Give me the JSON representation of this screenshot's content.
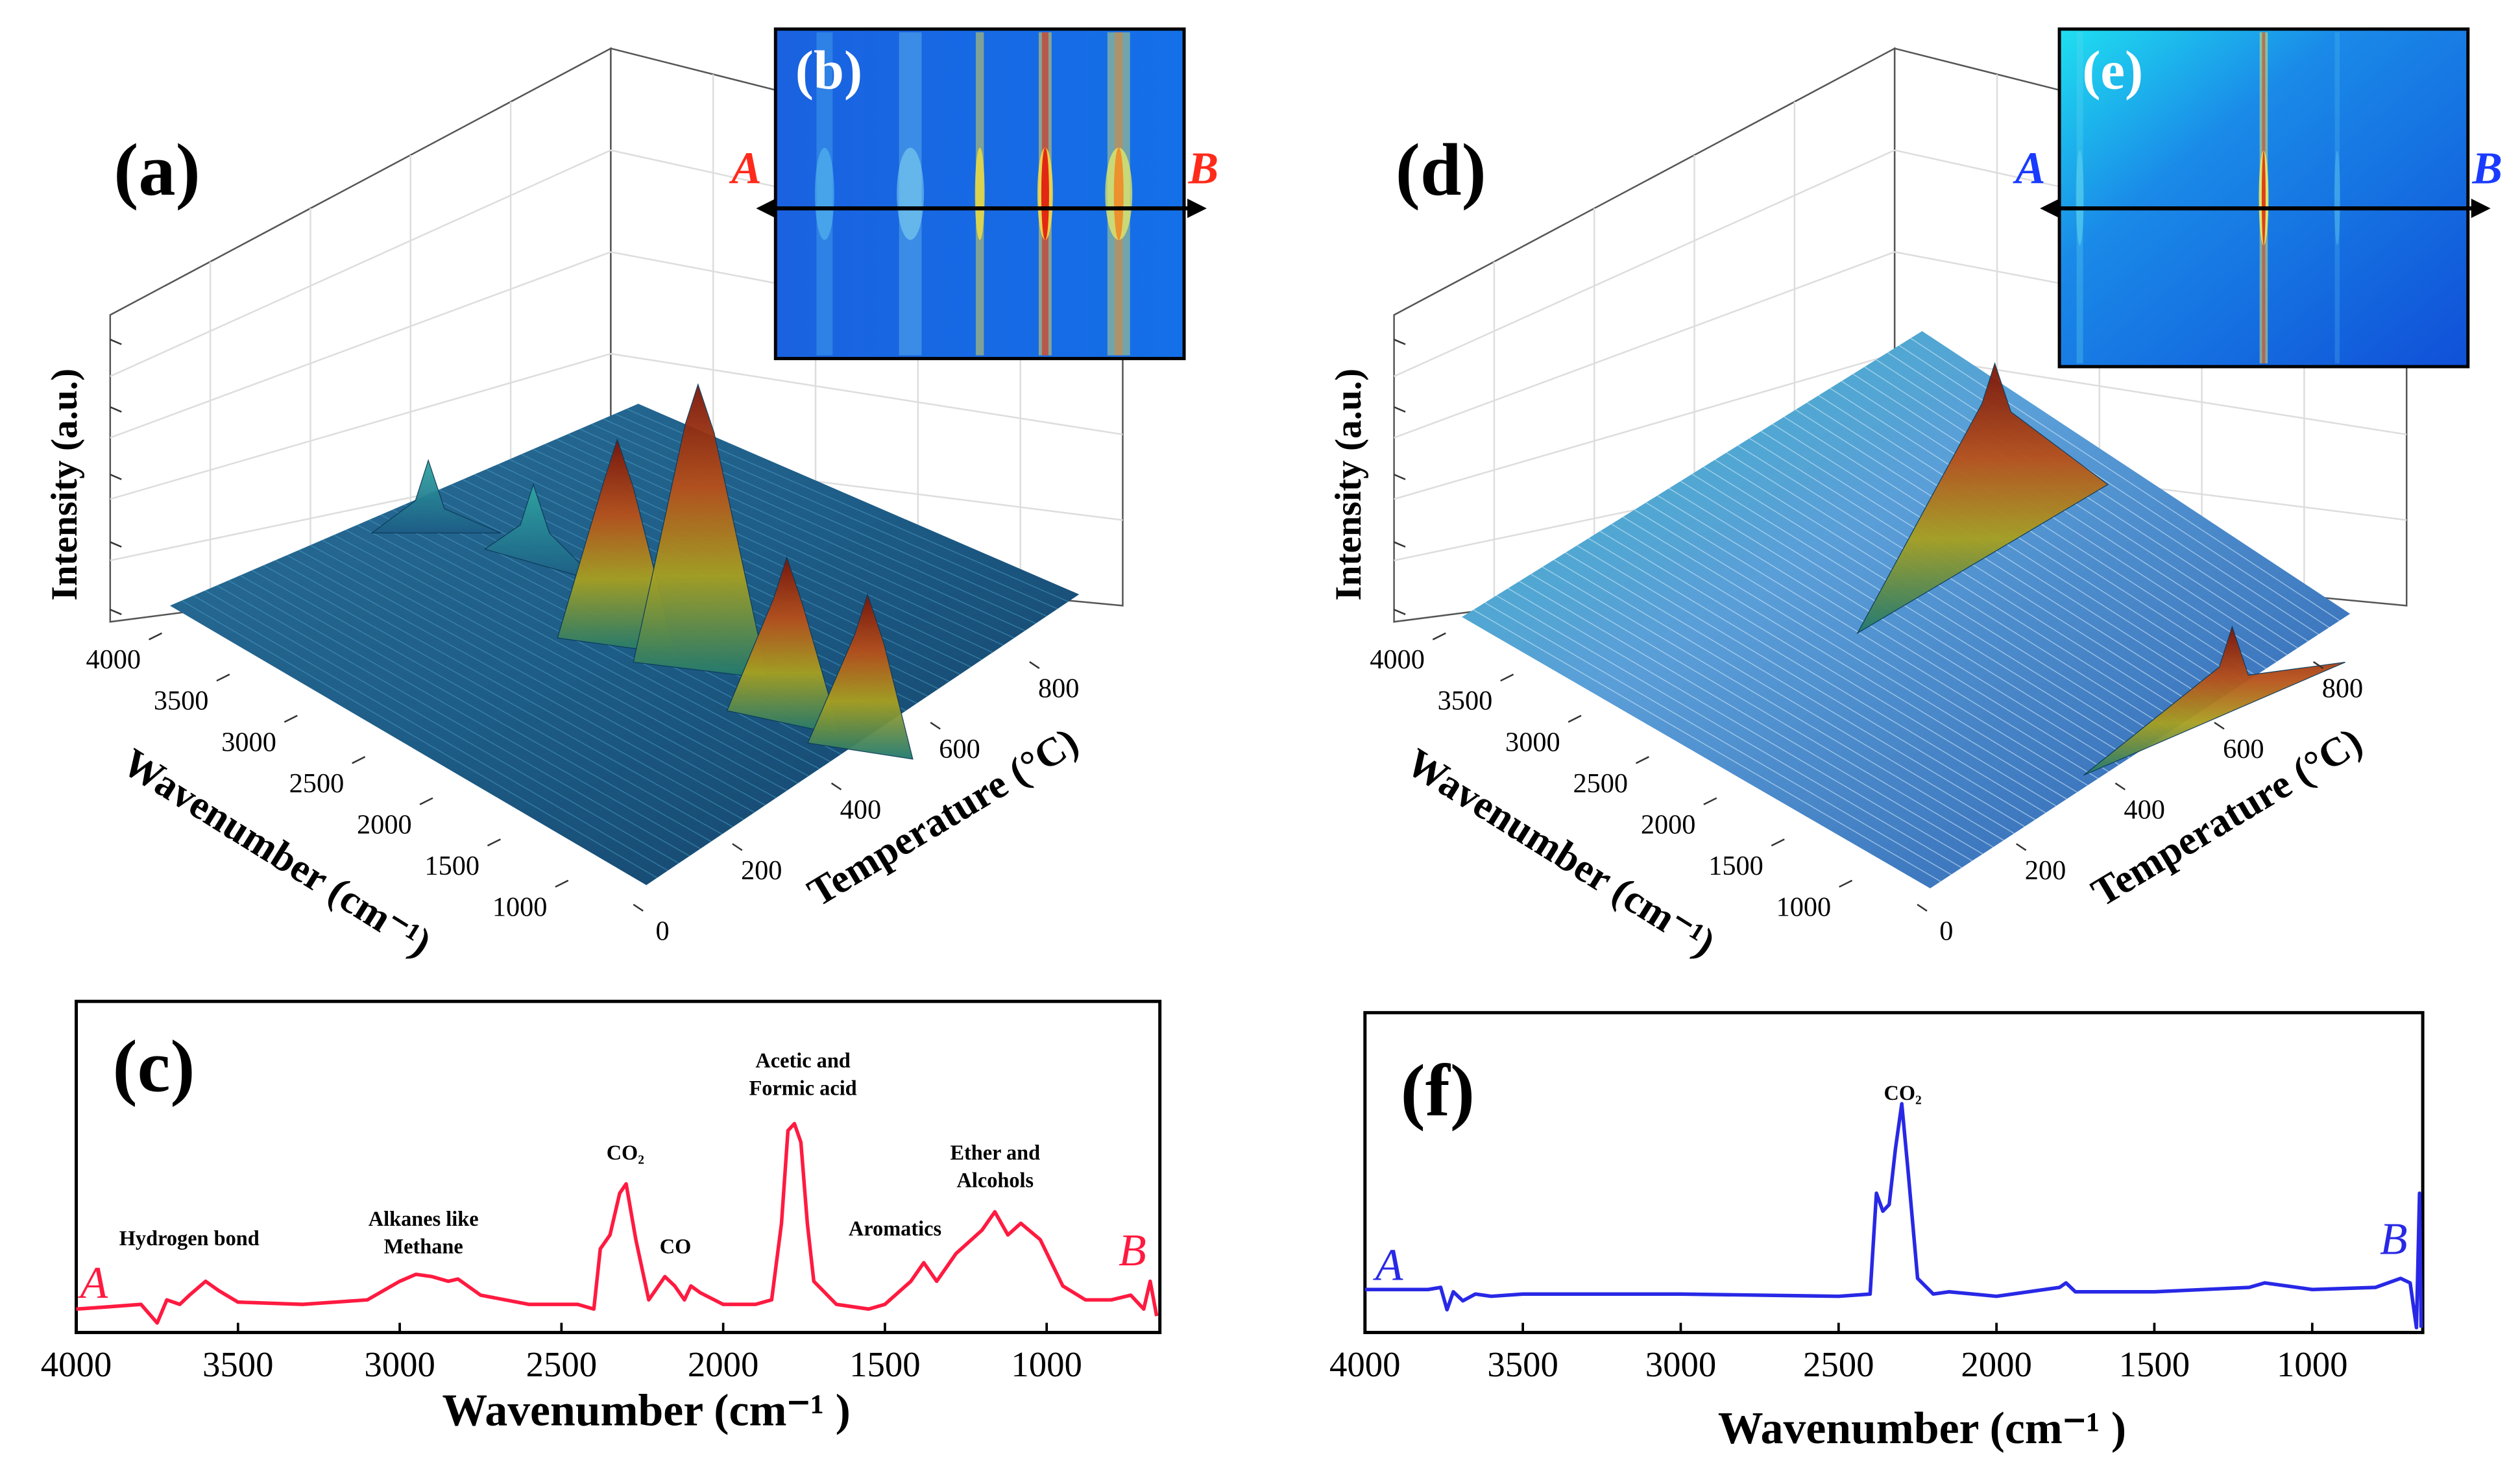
{
  "chart_data": [
    {
      "type": "surface3d",
      "label": "(a)",
      "zlabel": "Intensity (a.u.)",
      "xlabel": "Wavenumber (cm⁻¹)",
      "ylabel": "Temperature (°C)",
      "xlim": [
        4000,
        650
      ],
      "xticks": [
        4000,
        3500,
        3000,
        2500,
        2000,
        1500,
        1000
      ],
      "ylim": [
        0,
        900
      ],
      "yticks": [
        0,
        200,
        400,
        600,
        800
      ],
      "inset": {
        "label": "(b)",
        "start": "A",
        "end": "B",
        "color": "#ff2a1a"
      }
    },
    {
      "type": "surface3d",
      "label": "(d)",
      "zlabel": "Intensity (a.u.)",
      "xlabel": "Wavenumber (cm⁻¹)",
      "ylabel": "Temperature (°C)",
      "xlim": [
        4000,
        650
      ],
      "xticks": [
        4000,
        3500,
        3000,
        2500,
        2000,
        1500,
        1000
      ],
      "ylim": [
        0,
        900
      ],
      "yticks": [
        0,
        200,
        400,
        600,
        800
      ],
      "inset": {
        "label": "(e)",
        "start": "A",
        "end": "B",
        "color": "#1a3bff"
      }
    },
    {
      "type": "line",
      "label": "(c)",
      "xlabel": "Wavenumber (cm⁻¹ )",
      "start": "A",
      "end": "B",
      "color": "#ff1a40",
      "xlim": [
        4000,
        650
      ],
      "xticks": [
        4000,
        3500,
        3000,
        2500,
        2000,
        1500,
        1000
      ],
      "ylim": [
        0,
        100
      ],
      "x": [
        4000,
        3900,
        3800,
        3750,
        3720,
        3680,
        3650,
        3600,
        3560,
        3500,
        3300,
        3100,
        3000,
        2950,
        2900,
        2850,
        2820,
        2750,
        2600,
        2450,
        2400,
        2380,
        2350,
        2320,
        2300,
        2270,
        2230,
        2180,
        2150,
        2120,
        2100,
        2070,
        2000,
        1900,
        1850,
        1820,
        1800,
        1780,
        1760,
        1740,
        1720,
        1650,
        1550,
        1500,
        1420,
        1380,
        1340,
        1280,
        1200,
        1160,
        1120,
        1080,
        1020,
        950,
        880,
        800,
        740,
        700,
        680,
        660
      ],
      "values": [
        8,
        9,
        10,
        2,
        12,
        10,
        14,
        20,
        16,
        11,
        10,
        12,
        20,
        23,
        22,
        20,
        21,
        14,
        10,
        10,
        8,
        34,
        40,
        58,
        62,
        38,
        12,
        22,
        18,
        12,
        18,
        15,
        10,
        10,
        12,
        45,
        85,
        88,
        80,
        45,
        20,
        10,
        8,
        10,
        20,
        28,
        20,
        32,
        42,
        50,
        40,
        45,
        38,
        18,
        12,
        12,
        14,
        8,
        20,
        5
      ],
      "annotations": [
        {
          "text": [
            "Hydrogen bond"
          ]
        },
        {
          "text": [
            "Alkanes like",
            "Methane"
          ]
        },
        {
          "text": [
            "CO₂"
          ]
        },
        {
          "text": [
            "CO"
          ]
        },
        {
          "text": [
            "Acetic and",
            "Formic acid"
          ]
        },
        {
          "text": [
            "Aromatics"
          ]
        },
        {
          "text": [
            "Ether and",
            "Alcohols"
          ]
        }
      ]
    },
    {
      "type": "line",
      "label": "(f)",
      "xlabel": "Wavenumber (cm⁻¹ )",
      "start": "A",
      "end": "B",
      "color": "#2828e6",
      "xlim": [
        4000,
        650
      ],
      "xticks": [
        4000,
        3500,
        3000,
        2500,
        2000,
        1500,
        1000
      ],
      "ylim": [
        0,
        100
      ],
      "x": [
        4000,
        3800,
        3760,
        3740,
        3720,
        3690,
        3650,
        3600,
        3500,
        3000,
        2500,
        2400,
        2380,
        2360,
        2340,
        2320,
        2300,
        2280,
        2250,
        2200,
        2150,
        2000,
        1800,
        1780,
        1750,
        1500,
        1200,
        1150,
        1000,
        800,
        720,
        690,
        670,
        660,
        655
      ],
      "values": [
        17,
        17,
        18,
        8,
        16,
        12,
        15,
        14,
        15,
        15,
        14,
        15,
        60,
        52,
        55,
        80,
        100,
        70,
        22,
        15,
        16,
        14,
        18,
        20,
        16,
        16,
        18,
        20,
        17,
        18,
        22,
        20,
        0,
        60,
        0
      ],
      "annotations": [
        {
          "text": [
            "CO₂"
          ]
        }
      ]
    }
  ]
}
